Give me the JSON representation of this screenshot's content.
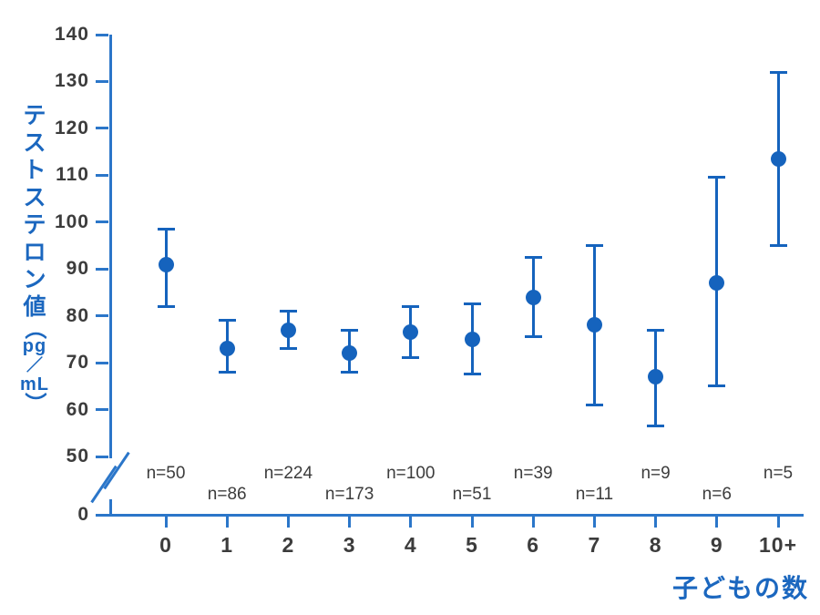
{
  "y_axis": {
    "label_text": "テストステロン値（pg／mL）",
    "label_parts": [
      {
        "t": "テ",
        "k": "kana"
      },
      {
        "t": "ス",
        "k": "kana"
      },
      {
        "t": "ト",
        "k": "kana"
      },
      {
        "t": "ス",
        "k": "kana"
      },
      {
        "t": "テ",
        "k": "kana"
      },
      {
        "t": "ロ",
        "k": "kana"
      },
      {
        "t": "ン",
        "k": "kana"
      },
      {
        "t": "値",
        "k": "kana"
      },
      {
        "t": "（",
        "k": "paren"
      },
      {
        "t": "pg",
        "k": "latin"
      },
      {
        "t": "／",
        "k": "slash"
      },
      {
        "t": "mL",
        "k": "latin"
      },
      {
        "t": "）",
        "k": "paren"
      }
    ]
  },
  "x_axis": {
    "title": "子どもの数",
    "categories": [
      "0",
      "1",
      "2",
      "3",
      "4",
      "5",
      "6",
      "7",
      "8",
      "9",
      "10+"
    ]
  },
  "sample_labels": [
    "n=50",
    "n=86",
    "n=224",
    "n=173",
    "n=100",
    "n=51",
    "n=39",
    "n=11",
    "n=9",
    "n=6",
    "n=5"
  ],
  "chart_data": {
    "type": "scatter",
    "subtype": "point-with-error-bars",
    "title": "",
    "xlabel": "子どもの数",
    "ylabel": "テストステロン値（pg／mL）",
    "categories": [
      "0",
      "1",
      "2",
      "3",
      "4",
      "5",
      "6",
      "7",
      "8",
      "9",
      "10+"
    ],
    "series": [
      {
        "name": "テストステロン値",
        "mean": [
          91,
          73,
          77,
          72,
          76.5,
          75,
          84,
          78,
          67,
          87,
          113.5
        ],
        "upper": [
          98.5,
          79,
          81,
          77,
          82,
          82.5,
          92.5,
          95,
          77,
          109.5,
          132
        ],
        "lower": [
          82,
          68,
          73,
          68,
          71,
          67.5,
          75.5,
          61,
          56.5,
          65,
          95
        ]
      }
    ],
    "sample_sizes": [
      50,
      86,
      224,
      173,
      100,
      51,
      39,
      11,
      9,
      6,
      5
    ],
    "yticks": [
      140,
      130,
      120,
      110,
      100,
      90,
      80,
      70,
      60,
      50,
      0
    ],
    "ylim": [
      0,
      140
    ],
    "axis_break_between": [
      0,
      50
    ],
    "grid": false,
    "legend": false,
    "colors": {
      "point": "#1563bd",
      "axis": "#2b76c9",
      "label_blue": "#1b67bf",
      "tick_text": "#3c3c3c",
      "background": "#ffffff"
    }
  }
}
